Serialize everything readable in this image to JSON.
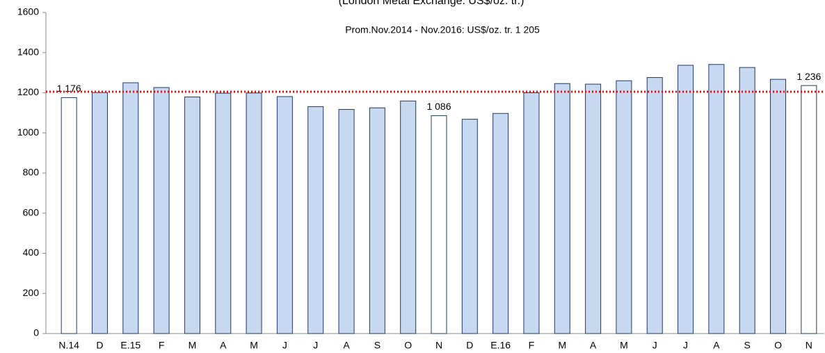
{
  "chart_data": {
    "type": "bar",
    "title": "(London Metal Exchange: US$/oz. tr.)",
    "categories": [
      "N.14",
      "D",
      "E.15",
      "F",
      "M",
      "A",
      "M",
      "J",
      "J",
      "A",
      "S",
      "O",
      "N",
      "D",
      "E.16",
      "F",
      "M",
      "A",
      "M",
      "J",
      "J",
      "A",
      "S",
      "O",
      "N"
    ],
    "values": [
      1176,
      1201,
      1250,
      1226,
      1179,
      1198,
      1199,
      1181,
      1131,
      1117,
      1125,
      1159,
      1086,
      1068,
      1097,
      1200,
      1246,
      1243,
      1260,
      1276,
      1337,
      1341,
      1326,
      1267,
      1236
    ],
    "value_labels": [
      "1 176",
      null,
      null,
      null,
      null,
      null,
      null,
      null,
      null,
      null,
      null,
      null,
      "1 086",
      null,
      null,
      null,
      null,
      null,
      null,
      null,
      null,
      null,
      null,
      null,
      "1 236"
    ],
    "colors": [
      "#ffffff",
      "#c6d9f1",
      "#c6d9f1",
      "#c6d9f1",
      "#c6d9f1",
      "#c6d9f1",
      "#c6d9f1",
      "#c6d9f1",
      "#c6d9f1",
      "#c6d9f1",
      "#c6d9f1",
      "#c6d9f1",
      "#ffffff",
      "#c6d9f1",
      "#c6d9f1",
      "#c6d9f1",
      "#c6d9f1",
      "#c6d9f1",
      "#c6d9f1",
      "#c6d9f1",
      "#c6d9f1",
      "#c6d9f1",
      "#c6d9f1",
      "#c6d9f1",
      "#ffffff"
    ],
    "edge_color": "#1f3864",
    "reference_line": {
      "value": 1205,
      "label": "Prom.Nov.2014 - Nov.2016: US$/oz. tr. 1 205",
      "color": "#ff0000"
    },
    "ylim": [
      0,
      1600
    ],
    "yticks": [
      0,
      200,
      400,
      600,
      800,
      1000,
      1200,
      1400,
      1600
    ],
    "grid": false
  }
}
